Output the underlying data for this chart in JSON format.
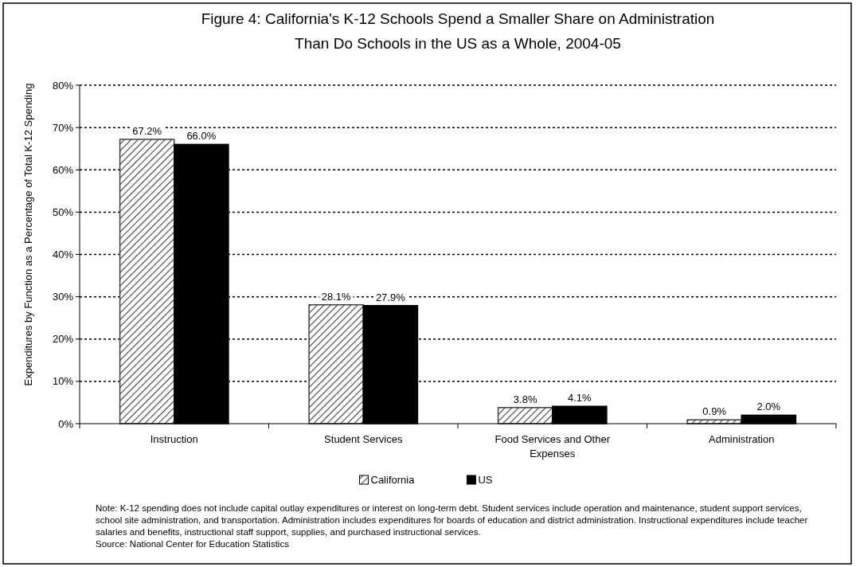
{
  "chart_data": {
    "type": "bar",
    "title": "Figure 4: California's K-12 Schools Spend a Smaller Share on Administration\nThan Do Schools in the US as a Whole, 2004-05",
    "ylabel": "Expenditures by Function as a Percentage of Total K-12 Spending",
    "categories": [
      "Instruction",
      "Student Services",
      "Food Services and Other Expenses",
      "Administration"
    ],
    "series": [
      {
        "name": "California",
        "color": "#404040",
        "values": [
          67.2,
          28.1,
          3.8,
          0.9
        ],
        "value_labels": [
          "67.2%",
          "28.1%",
          "3.8%",
          "0.9%"
        ]
      },
      {
        "name": "US",
        "color": "#000000",
        "values": [
          66.0,
          27.9,
          4.1,
          2.0
        ],
        "value_labels": [
          "66.0%",
          "27.9%",
          "4.1%",
          "2.0%"
        ]
      }
    ],
    "ylim": [
      0,
      80
    ],
    "yticks": [
      {
        "value": 0,
        "label": "0%"
      },
      {
        "value": 10,
        "label": "10%"
      },
      {
        "value": 20,
        "label": "20%"
      },
      {
        "value": 30,
        "label": "30%"
      },
      {
        "value": 40,
        "label": "40%"
      },
      {
        "value": 50,
        "label": "50%"
      },
      {
        "value": 60,
        "label": "60%"
      },
      {
        "value": 70,
        "label": "70%"
      },
      {
        "value": 80,
        "label": "80%"
      }
    ],
    "grid": "y",
    "legend": "bottom",
    "line_style": "dotted",
    "annotations": [
      "Note: K-12 spending does not include capital outlay expenditures or interest on long-term debt.  Student services include operation and maintenance, student support services, school site administration, and transportation.  Administration includes expenditures for boards of education and district administration.  Instructional expenditures include teacher salaries and benefits, instructional staff support, supplies, and purchased instructional services.",
      "Source: National Center for Education Statistics"
    ]
  }
}
